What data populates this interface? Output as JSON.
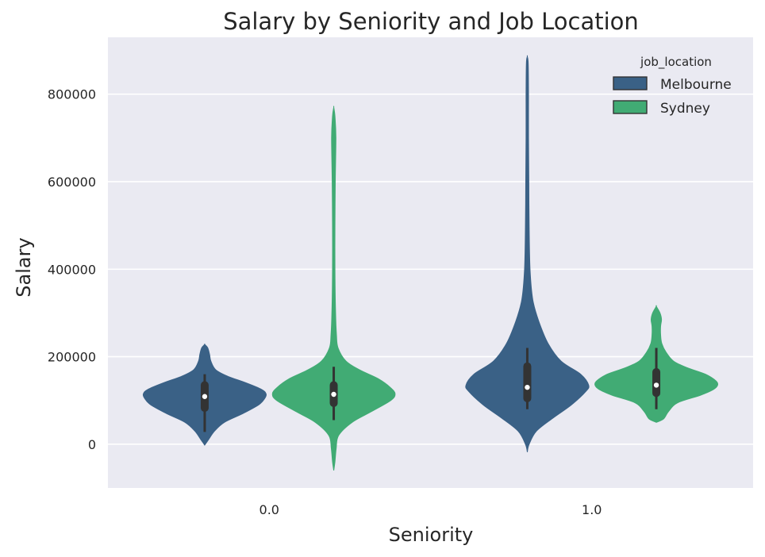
{
  "chart_data": {
    "type": "violin",
    "title": "Salary by Seniority and Job Location",
    "xlabel": "Seniority",
    "ylabel": "Salary",
    "categories": [
      "0.0",
      "1.0"
    ],
    "ylim": [
      -100000,
      930000
    ],
    "yticks": [
      0,
      200000,
      400000,
      600000,
      800000
    ],
    "ytick_labels": [
      "0",
      "200000",
      "400000",
      "600000",
      "800000"
    ],
    "grid": true,
    "legend": {
      "title": "job_location",
      "placement": "top-right"
    },
    "series": [
      {
        "name": "Melbourne",
        "color": "#3a6186",
        "violins": [
          {
            "category": "0.0",
            "min": -2000,
            "max": 228000,
            "q1": 83000,
            "median": 109000,
            "q3": 135000,
            "whisker_low": 28000,
            "whisker_high": 160000,
            "profile": [
              [
                -2000,
                0.0
              ],
              [
                10000,
                0.06
              ],
              [
                30000,
                0.16
              ],
              [
                50000,
                0.32
              ],
              [
                70000,
                0.62
              ],
              [
                90000,
                0.88
              ],
              [
                105000,
                0.98
              ],
              [
                115000,
                1.0
              ],
              [
                125000,
                0.93
              ],
              [
                140000,
                0.68
              ],
              [
                155000,
                0.38
              ],
              [
                170000,
                0.18
              ],
              [
                190000,
                0.1
              ],
              [
                205000,
                0.08
              ],
              [
                220000,
                0.05
              ],
              [
                228000,
                0.0
              ]
            ]
          },
          {
            "category": "1.0",
            "min": -18000,
            "max": 886000,
            "q1": 105000,
            "median": 130000,
            "q3": 178000,
            "whisker_low": 80000,
            "whisker_high": 220000,
            "profile": [
              [
                -18000,
                0.0
              ],
              [
                0,
                0.03
              ],
              [
                30000,
                0.15
              ],
              [
                60000,
                0.42
              ],
              [
                90000,
                0.72
              ],
              [
                120000,
                0.95
              ],
              [
                135000,
                1.0
              ],
              [
                160000,
                0.87
              ],
              [
                190000,
                0.55
              ],
              [
                230000,
                0.34
              ],
              [
                280000,
                0.19
              ],
              [
                330000,
                0.09
              ],
              [
                400000,
                0.045
              ],
              [
                500000,
                0.03
              ],
              [
                600000,
                0.025
              ],
              [
                700000,
                0.02
              ],
              [
                800000,
                0.02
              ],
              [
                870000,
                0.015
              ],
              [
                886000,
                0.0
              ]
            ]
          }
        ]
      },
      {
        "name": "Sydney",
        "color": "#41ab74",
        "violins": [
          {
            "category": "0.0",
            "min": -60000,
            "max": 770000,
            "q1": 94000,
            "median": 114000,
            "q3": 135000,
            "whisker_low": 55000,
            "whisker_high": 177000,
            "profile": [
              [
                -60000,
                0.0
              ],
              [
                -40000,
                0.02
              ],
              [
                -10000,
                0.04
              ],
              [
                20000,
                0.08
              ],
              [
                50000,
                0.3
              ],
              [
                75000,
                0.62
              ],
              [
                100000,
                0.93
              ],
              [
                115000,
                1.0
              ],
              [
                130000,
                0.92
              ],
              [
                150000,
                0.72
              ],
              [
                170000,
                0.42
              ],
              [
                190000,
                0.2
              ],
              [
                220000,
                0.07
              ],
              [
                250000,
                0.045
              ],
              [
                300000,
                0.03
              ],
              [
                400000,
                0.02
              ],
              [
                500000,
                0.02
              ],
              [
                600000,
                0.025
              ],
              [
                700000,
                0.035
              ],
              [
                750000,
                0.02
              ],
              [
                770000,
                0.0
              ]
            ]
          },
          {
            "category": "1.0",
            "min": 50000,
            "max": 315000,
            "q1": 117000,
            "median": 135000,
            "q3": 165000,
            "whisker_low": 80000,
            "whisker_high": 220000,
            "profile": [
              [
                50000,
                0.0
              ],
              [
                58000,
                0.12
              ],
              [
                75000,
                0.2
              ],
              [
                95000,
                0.35
              ],
              [
                112000,
                0.72
              ],
              [
                125000,
                0.93
              ],
              [
                135000,
                1.0
              ],
              [
                145000,
                0.97
              ],
              [
                160000,
                0.8
              ],
              [
                175000,
                0.5
              ],
              [
                190000,
                0.28
              ],
              [
                210000,
                0.16
              ],
              [
                230000,
                0.09
              ],
              [
                250000,
                0.07
              ],
              [
                270000,
                0.07
              ],
              [
                285000,
                0.085
              ],
              [
                300000,
                0.06
              ],
              [
                315000,
                0.0
              ]
            ]
          }
        ]
      }
    ]
  }
}
